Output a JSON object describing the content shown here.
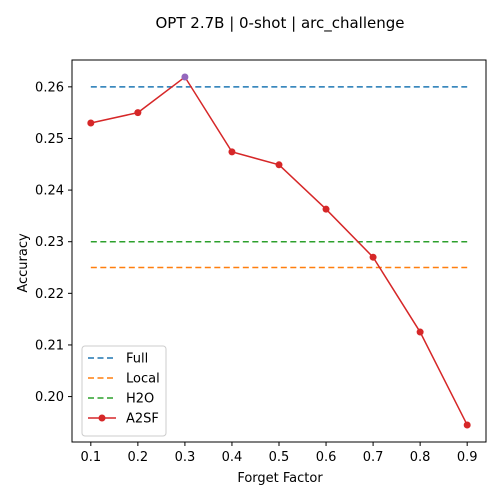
{
  "chart_data": {
    "type": "line",
    "title": "OPT 2.7B | 0-shot | arc_challenge",
    "xlabel": "Forget Factor",
    "ylabel": "Accuracy",
    "x": [
      0.1,
      0.2,
      0.3,
      0.4,
      0.5,
      0.6,
      0.7,
      0.8,
      0.9
    ],
    "x_tick_labels": [
      "0.1",
      "0.2",
      "0.3",
      "0.4",
      "0.5",
      "0.6",
      "0.7",
      "0.8",
      "0.9"
    ],
    "y_ticks": [
      0.2,
      0.21,
      0.22,
      0.23,
      0.24,
      0.25,
      0.26
    ],
    "y_tick_labels": [
      "0.20",
      "0.21",
      "0.22",
      "0.23",
      "0.24",
      "0.25",
      "0.26"
    ],
    "xlim": [
      0.06,
      0.94
    ],
    "ylim": [
      0.1912,
      0.2652
    ],
    "legend_position": "lower-left",
    "baselines": [
      {
        "name": "Full",
        "value": 0.26,
        "color": "#1f77b4",
        "style": "dashed"
      },
      {
        "name": "Local",
        "value": 0.225,
        "color": "#ff7f0e",
        "style": "dashed"
      },
      {
        "name": "H2O",
        "value": 0.23,
        "color": "#2ca02c",
        "style": "dashed"
      }
    ],
    "series": [
      {
        "name": "A2SF",
        "color": "#d62728",
        "marker": "circle",
        "values": [
          0.253,
          0.255,
          0.2619,
          0.2474,
          0.2449,
          0.2363,
          0.227,
          0.2125,
          0.1945
        ]
      }
    ],
    "highlight_point": {
      "x": 0.3,
      "y": 0.2619,
      "color": "#9467bd"
    }
  }
}
